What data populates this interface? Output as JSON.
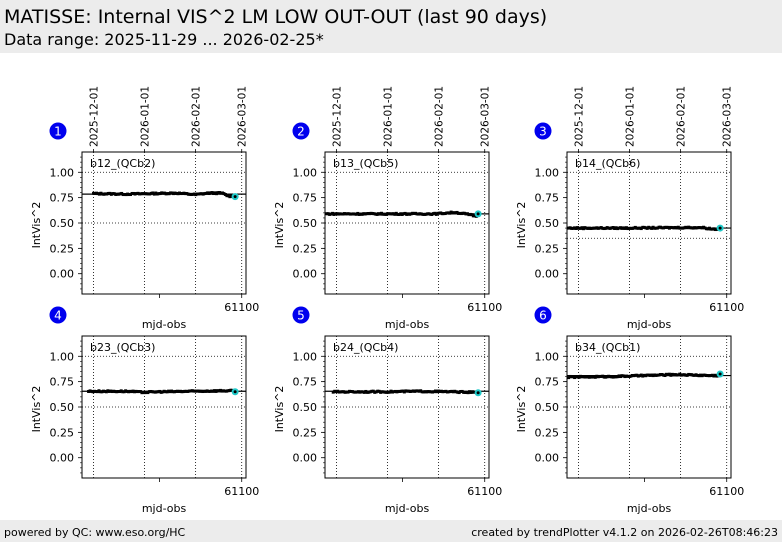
{
  "header": {
    "title": "MATISSE: Internal VIS^2 LM LOW OUT-OUT (last 90 days)",
    "subtitle": "Data range: 2025-11-29 ... 2026-02-25*"
  },
  "footer": {
    "left": "powered by QC: www.eso.org/HC",
    "right": "created by trendPlotter v4.1.2 on 2026-02-26T08:46:23"
  },
  "colors": {
    "badge": "#0000ee",
    "points": "#000000",
    "latest_point": "#1ec8c8",
    "reference_line": "#000000",
    "header_bg": "#ececec"
  },
  "chart_data": [
    {
      "type": "scatter",
      "index": "1",
      "label": "b12_(QCb2)",
      "xlabel": "mjd-obs",
      "ylabel": "IntVis^2",
      "xlim": [
        61003,
        61102.6
      ],
      "ylim": [
        -0.2,
        1.2
      ],
      "x_tick_labels": [
        "61100"
      ],
      "x_minor_ticks": [
        61050
      ],
      "top_date_ticks": [
        {
          "label": "2025-12-01",
          "mjd": 61010
        },
        {
          "label": "2026-01-01",
          "mjd": 61041
        },
        {
          "label": "2026-02-01",
          "mjd": 61072
        },
        {
          "label": "2026-03-01",
          "mjd": 61100
        }
      ],
      "y_ticks": [
        "1.00",
        "0.75",
        "0.50",
        "0.25",
        "0.00"
      ],
      "y_tick_values": [
        1.0,
        0.75,
        0.5,
        0.25,
        0.0
      ],
      "reference_value": 0.785,
      "lower_limit": 0.5,
      "upper_limit": 1.0,
      "series_start_mjd": 61010,
      "series_end_mjd": 61096,
      "trend": [
        [
          61010,
          0.79
        ],
        [
          61030,
          0.785
        ],
        [
          61045,
          0.79
        ],
        [
          61060,
          0.795
        ],
        [
          61072,
          0.78
        ],
        [
          61080,
          0.795
        ],
        [
          61088,
          0.795
        ],
        [
          61092,
          0.765
        ]
      ],
      "latest": {
        "mjd": 61096,
        "value": 0.76
      }
    },
    {
      "type": "scatter",
      "index": "2",
      "label": "b13_(QCb5)",
      "xlabel": "mjd-obs",
      "ylabel": "IntVis^2",
      "xlim": [
        61003,
        61102.6
      ],
      "ylim": [
        -0.2,
        1.2
      ],
      "x_tick_labels": [
        "61100"
      ],
      "x_minor_ticks": [
        61050
      ],
      "top_date_ticks": [
        {
          "label": "2025-12-01",
          "mjd": 61010
        },
        {
          "label": "2026-01-01",
          "mjd": 61041
        },
        {
          "label": "2026-02-01",
          "mjd": 61072
        },
        {
          "label": "2026-03-01",
          "mjd": 61100
        }
      ],
      "y_ticks": [
        "1.00",
        "0.75",
        "0.50",
        "0.25",
        "0.00"
      ],
      "y_tick_values": [
        1.0,
        0.75,
        0.5,
        0.25,
        0.0
      ],
      "reference_value": 0.59,
      "lower_limit": 0.5,
      "upper_limit": 1.0,
      "series_start_mjd": 61004,
      "series_end_mjd": 61096,
      "trend": [
        [
          61004,
          0.59
        ],
        [
          61040,
          0.59
        ],
        [
          61070,
          0.59
        ],
        [
          61082,
          0.605
        ],
        [
          61090,
          0.585
        ],
        [
          61094,
          0.57
        ]
      ],
      "latest": {
        "mjd": 61096,
        "value": 0.59
      }
    },
    {
      "type": "scatter",
      "index": "3",
      "label": "b14_(QCb6)",
      "xlabel": "mjd-obs",
      "ylabel": "IntVis^2",
      "xlim": [
        61003,
        61102.6
      ],
      "ylim": [
        -0.2,
        1.2
      ],
      "x_tick_labels": [
        "61100"
      ],
      "x_minor_ticks": [
        61050
      ],
      "top_date_ticks": [
        {
          "label": "2025-12-01",
          "mjd": 61010
        },
        {
          "label": "2026-01-01",
          "mjd": 61041
        },
        {
          "label": "2026-02-01",
          "mjd": 61072
        },
        {
          "label": "2026-03-01",
          "mjd": 61100
        }
      ],
      "y_ticks": [
        "1.00",
        "0.75",
        "0.50",
        "0.25",
        "0.00"
      ],
      "y_tick_values": [
        1.0,
        0.75,
        0.5,
        0.25,
        0.0
      ],
      "reference_value": 0.45,
      "lower_limit": 0.35,
      "upper_limit": 1.0,
      "series_start_mjd": 61004,
      "series_end_mjd": 61096,
      "trend": [
        [
          61004,
          0.45
        ],
        [
          61040,
          0.45
        ],
        [
          61075,
          0.455
        ],
        [
          61085,
          0.455
        ],
        [
          61092,
          0.44
        ]
      ],
      "latest": {
        "mjd": 61096,
        "value": 0.45
      }
    },
    {
      "type": "scatter",
      "index": "4",
      "label": "b23_(QCb3)",
      "xlabel": "mjd-obs",
      "ylabel": "IntVis^2",
      "xlim": [
        61003,
        61102.6
      ],
      "ylim": [
        -0.2,
        1.2
      ],
      "x_tick_labels": [
        "61100"
      ],
      "x_minor_ticks": [
        61050
      ],
      "top_date_ticks": [
        {
          "label": "2025-12-01",
          "mjd": 61010
        },
        {
          "label": "2026-01-01",
          "mjd": 61041
        },
        {
          "label": "2026-02-01",
          "mjd": 61072
        },
        {
          "label": "2026-03-01",
          "mjd": 61100
        }
      ],
      "y_ticks": [
        "1.00",
        "0.75",
        "0.50",
        "0.25",
        "0.00"
      ],
      "y_tick_values": [
        1.0,
        0.75,
        0.5,
        0.25,
        0.0
      ],
      "reference_value": 0.655,
      "lower_limit": 0.5,
      "upper_limit": 1.0,
      "series_start_mjd": 61007,
      "series_end_mjd": 61096,
      "trend": [
        [
          61007,
          0.655
        ],
        [
          61030,
          0.655
        ],
        [
          61040,
          0.645
        ],
        [
          61050,
          0.65
        ],
        [
          61070,
          0.655
        ],
        [
          61088,
          0.66
        ]
      ],
      "latest": {
        "mjd": 61096,
        "value": 0.65
      }
    },
    {
      "type": "scatter",
      "index": "5",
      "label": "b24_(QCb4)",
      "xlabel": "mjd-obs",
      "ylabel": "IntVis^2",
      "xlim": [
        61003,
        61102.6
      ],
      "ylim": [
        -0.2,
        1.2
      ],
      "x_tick_labels": [
        "61100"
      ],
      "x_minor_ticks": [
        61050
      ],
      "top_date_ticks": [
        {
          "label": "2025-12-01",
          "mjd": 61010
        },
        {
          "label": "2026-01-01",
          "mjd": 61041
        },
        {
          "label": "2026-02-01",
          "mjd": 61072
        },
        {
          "label": "2026-03-01",
          "mjd": 61100
        }
      ],
      "y_ticks": [
        "1.00",
        "0.75",
        "0.50",
        "0.25",
        "0.00"
      ],
      "y_tick_values": [
        1.0,
        0.75,
        0.5,
        0.25,
        0.0
      ],
      "reference_value": 0.655,
      "lower_limit": 0.5,
      "upper_limit": 1.0,
      "series_start_mjd": 61008,
      "series_end_mjd": 61096,
      "trend": [
        [
          61008,
          0.65
        ],
        [
          61040,
          0.65
        ],
        [
          61060,
          0.655
        ],
        [
          61080,
          0.65
        ],
        [
          61093,
          0.645
        ]
      ],
      "latest": {
        "mjd": 61096,
        "value": 0.64
      }
    },
    {
      "type": "scatter",
      "index": "6",
      "label": "b34_(QCb1)",
      "xlabel": "mjd-obs",
      "ylabel": "IntVis^2",
      "xlim": [
        61003,
        61102.6
      ],
      "ylim": [
        -0.2,
        1.2
      ],
      "x_tick_labels": [
        "61100"
      ],
      "x_minor_ticks": [
        61050
      ],
      "top_date_ticks": [
        {
          "label": "2025-12-01",
          "mjd": 61010
        },
        {
          "label": "2026-01-01",
          "mjd": 61041
        },
        {
          "label": "2026-02-01",
          "mjd": 61072
        },
        {
          "label": "2026-03-01",
          "mjd": 61100
        }
      ],
      "y_ticks": [
        "1.00",
        "0.75",
        "0.50",
        "0.25",
        "0.00"
      ],
      "y_tick_values": [
        1.0,
        0.75,
        0.5,
        0.25,
        0.0
      ],
      "reference_value": 0.81,
      "lower_limit": 0.5,
      "upper_limit": 1.0,
      "series_start_mjd": 61004,
      "series_end_mjd": 61096,
      "trend": [
        [
          61004,
          0.795
        ],
        [
          61030,
          0.8
        ],
        [
          61050,
          0.81
        ],
        [
          61070,
          0.82
        ],
        [
          61080,
          0.815
        ],
        [
          61090,
          0.81
        ]
      ],
      "latest": {
        "mjd": 61096,
        "value": 0.825
      }
    }
  ]
}
